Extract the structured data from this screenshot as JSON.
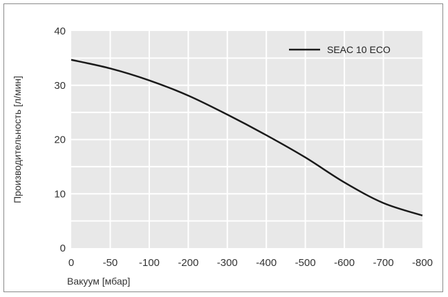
{
  "chart_data": {
    "type": "line",
    "xlabel": "Вакуум [мбар]",
    "ylabel": "Производительность [л/мин]",
    "categories": [
      "0",
      "-50",
      "-100",
      "-200",
      "-300",
      "-400",
      "-500",
      "-600",
      "-700",
      "-800"
    ],
    "ylim": [
      0,
      40
    ],
    "yticks": [
      0,
      10,
      20,
      30,
      40
    ],
    "grid": true,
    "legend": "top-right",
    "series": [
      {
        "name": "SEAC 10 ECO",
        "color": "#1a1a1a",
        "values": [
          34.7,
          33.1,
          30.9,
          28.1,
          24.6,
          20.8,
          16.7,
          12.1,
          8.3,
          6.0
        ]
      }
    ],
    "colors": {
      "plot_bg": "#e8e8e8",
      "grid": "#ffffff",
      "text": "#333333"
    }
  }
}
